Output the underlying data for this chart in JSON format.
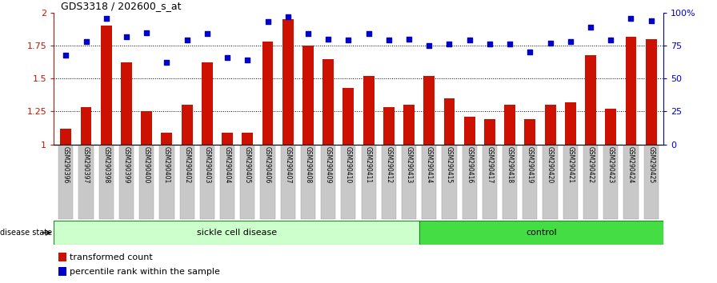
{
  "title": "GDS3318 / 202600_s_at",
  "samples": [
    "GSM290396",
    "GSM290397",
    "GSM290398",
    "GSM290399",
    "GSM290400",
    "GSM290401",
    "GSM290402",
    "GSM290403",
    "GSM290404",
    "GSM290405",
    "GSM290406",
    "GSM290407",
    "GSM290408",
    "GSM290409",
    "GSM290410",
    "GSM290411",
    "GSM290412",
    "GSM290413",
    "GSM290414",
    "GSM290415",
    "GSM290416",
    "GSM290417",
    "GSM290418",
    "GSM290419",
    "GSM290420",
    "GSM290421",
    "GSM290422",
    "GSM290423",
    "GSM290424",
    "GSM290425"
  ],
  "bar_values": [
    1.12,
    1.28,
    1.9,
    1.62,
    1.25,
    1.09,
    1.3,
    1.62,
    1.09,
    1.09,
    1.78,
    1.95,
    1.75,
    1.65,
    1.43,
    1.52,
    1.28,
    1.3,
    1.52,
    1.35,
    1.21,
    1.19,
    1.3,
    1.19,
    1.3,
    1.32,
    1.68,
    1.27,
    1.82,
    1.8
  ],
  "dot_values": [
    68,
    78,
    96,
    82,
    85,
    62,
    79,
    84,
    66,
    64,
    93,
    97,
    84,
    80,
    79,
    84,
    79,
    80,
    75,
    76,
    79,
    76,
    76,
    70,
    77,
    78,
    89,
    79,
    96,
    94
  ],
  "bar_color": "#cc1100",
  "dot_color": "#0000cc",
  "ylim_left": [
    1.0,
    2.0
  ],
  "ylim_right": [
    0,
    100
  ],
  "yticks_left": [
    1.0,
    1.25,
    1.5,
    1.75,
    2.0
  ],
  "yticks_right": [
    0,
    25,
    50,
    75,
    100
  ],
  "ytick_labels_left": [
    "1",
    "1.25",
    "1.5",
    "1.75",
    "2"
  ],
  "ytick_labels_right": [
    "0",
    "25",
    "50",
    "75",
    "100%"
  ],
  "grid_lines": [
    1.25,
    1.5,
    1.75
  ],
  "sickle_count": 18,
  "control_count": 12,
  "sickle_label": "sickle cell disease",
  "control_label": "control",
  "disease_state_label": "disease state",
  "legend_bar_label": "transformed count",
  "legend_dot_label": "percentile rank within the sample",
  "bg_color": "#ffffff",
  "tick_label_bg": "#c8c8c8",
  "sickle_bg": "#ccffcc",
  "control_bg": "#44dd44"
}
